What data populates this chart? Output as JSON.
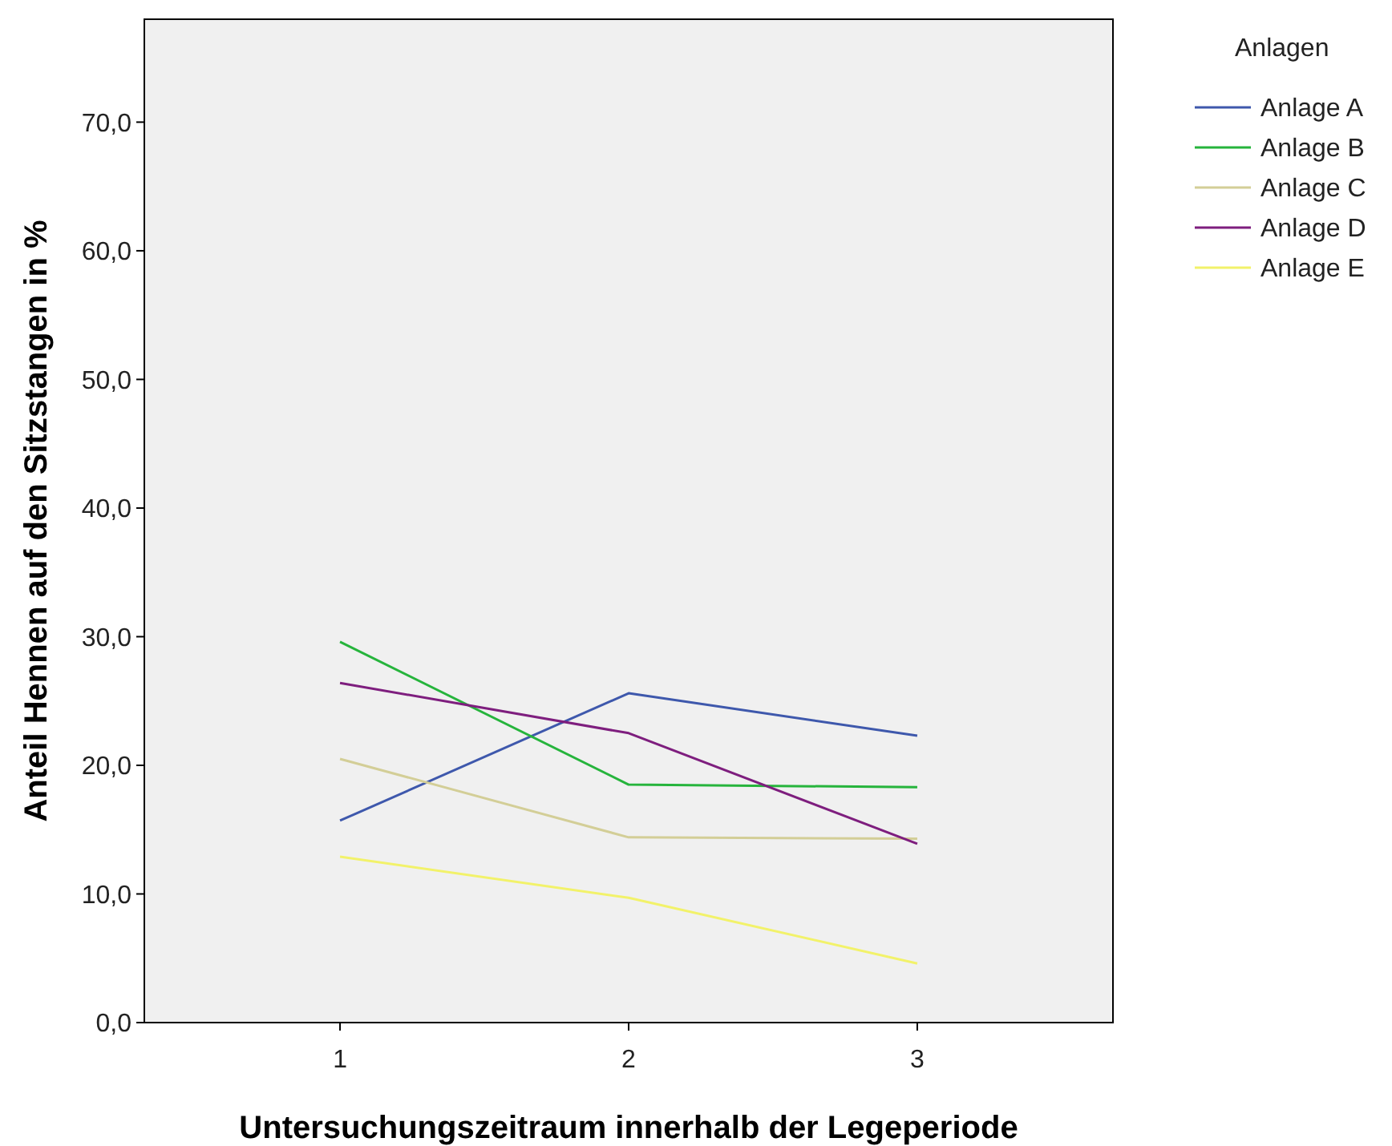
{
  "chart_data": {
    "type": "line",
    "xlabel": "Untersuchungszeitraum innerhalb der Legeperiode",
    "ylabel": "Anteil Hennen auf den Sitzstangen in %",
    "legend_title": "Anlagen",
    "categories": [
      "1",
      "2",
      "3"
    ],
    "series": [
      {
        "name": "Anlage A",
        "color": "#3e58ac",
        "values": [
          15.7,
          25.6,
          22.3
        ]
      },
      {
        "name": "Anlage B",
        "color": "#26b43c",
        "values": [
          29.6,
          18.5,
          18.3
        ]
      },
      {
        "name": "Anlage C",
        "color": "#d3ce97",
        "values": [
          20.5,
          14.4,
          14.3
        ]
      },
      {
        "name": "Anlage D",
        "color": "#7e1e7e",
        "values": [
          26.4,
          22.5,
          13.9
        ]
      },
      {
        "name": "Anlage E",
        "color": "#f2f26a",
        "values": [
          12.9,
          9.7,
          4.6
        ]
      }
    ],
    "ylim": [
      0,
      78
    ],
    "yticks": [
      {
        "value": 0,
        "label": "0,0"
      },
      {
        "value": 10,
        "label": "10,0"
      },
      {
        "value": 20,
        "label": "20,0"
      },
      {
        "value": 30,
        "label": "30,0"
      },
      {
        "value": 40,
        "label": "40,0"
      },
      {
        "value": 50,
        "label": "50,0"
      },
      {
        "value": 60,
        "label": "60,0"
      },
      {
        "value": 70,
        "label": "70,0"
      }
    ],
    "grid": false,
    "legend": "top right",
    "marker": "none",
    "line_style": "solid"
  }
}
